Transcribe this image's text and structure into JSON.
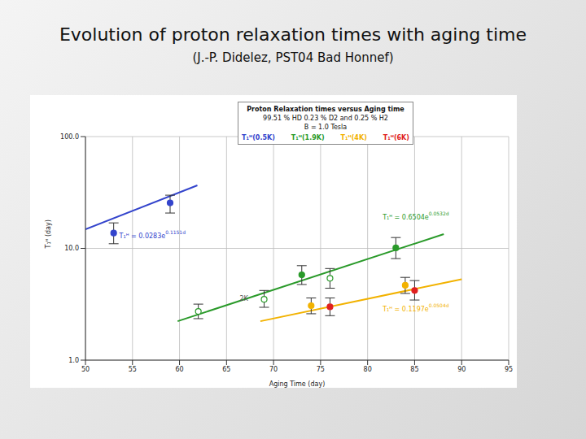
{
  "chart_data": {
    "type": "scatter",
    "title": "Evolution of proton relaxation times with aging time",
    "subtitle": "(J.-P. Didelez, PST04 Bad Honnef)",
    "x_label": "Aging Time (day)",
    "y_label": "T₁ᴴ (day)",
    "legend_title": [
      "Proton Relaxation times versus Aging time",
      "99.51 % HD  0.23 % D2 and 0.25 % H2",
      "B = 1.0 Tesla"
    ],
    "legend": "top",
    "grid": true,
    "log": "y",
    "xlim": [
      50,
      95
    ],
    "xticks": [
      50,
      55,
      60,
      65,
      70,
      75,
      80,
      85,
      90,
      95
    ],
    "ylim": [
      1,
      100
    ],
    "yticks": [
      {
        "value": 1,
        "label": "1.0"
      },
      {
        "value": 10,
        "label": "10.0"
      },
      {
        "value": 100,
        "label": "100.0"
      }
    ],
    "series": [
      {
        "name": "T₁ᴴ(0.5K)",
        "color": "#3344cc",
        "marker": "filled",
        "x": [
          53,
          59
        ],
        "values": [
          13.7,
          25.5
        ],
        "errors": [
          [
            2.7,
            3.2
          ],
          [
            4.8,
            4.4
          ]
        ],
        "fit": {
          "x": [
            50,
            61.9
          ],
          "values": [
            14.8,
            36.6
          ]
        }
      },
      {
        "name": "T₁ᴴ(1.9K)",
        "color": "#2a9a2a",
        "marker": [
          "open",
          "open",
          "filled",
          "open",
          "filled"
        ],
        "x": [
          62,
          69,
          73,
          76,
          83
        ],
        "values": [
          2.73,
          3.5,
          5.8,
          5.4,
          10.1
        ],
        "errors": [
          [
            0.38,
            0.44
          ],
          [
            0.53,
            0.7
          ],
          [
            1.05,
            1.2
          ],
          [
            1.0,
            1.2
          ],
          [
            2.0,
            2.4
          ]
        ],
        "fit": {
          "x": [
            59.8,
            88.1
          ],
          "values": [
            2.23,
            13.4
          ]
        }
      },
      {
        "name": "T₁ᴴ(4K)",
        "color": "#f2b200",
        "marker": "filled",
        "x": [
          74,
          84
        ],
        "values": [
          3.07,
          4.67
        ],
        "errors": [
          [
            0.47,
            0.53
          ],
          [
            0.72,
            0.83
          ]
        ],
        "fit": {
          "x": [
            68.6,
            90
          ],
          "values": [
            2.23,
            5.3
          ]
        }
      },
      {
        "name": "T₁ᴴ(6K)",
        "color": "#e02020",
        "marker": "filled",
        "x": [
          76,
          85
        ],
        "values": [
          3.0,
          4.2
        ],
        "errors": [
          [
            0.5,
            0.6
          ],
          [
            0.75,
            0.95
          ]
        ]
      }
    ],
    "annotations": [
      {
        "text": "T₁ᴴ = 0.0283e",
        "sup": "0.1151d",
        "x": 53.6,
        "y": 12.3,
        "color": "#3344cc"
      },
      {
        "text": "T₁ᴴ = 0.6504e",
        "sup": "0.0532d",
        "x": 81.6,
        "y": 18.1,
        "color": "#2a9a2a"
      },
      {
        "text": "T₁ᴴ = 0.1197e",
        "sup": "0.0504d",
        "x": 81.6,
        "y": 2.73,
        "color": "#f2b200"
      },
      {
        "text": "2K",
        "x": 66.4,
        "y": 3.4,
        "color": "#555555"
      }
    ]
  }
}
